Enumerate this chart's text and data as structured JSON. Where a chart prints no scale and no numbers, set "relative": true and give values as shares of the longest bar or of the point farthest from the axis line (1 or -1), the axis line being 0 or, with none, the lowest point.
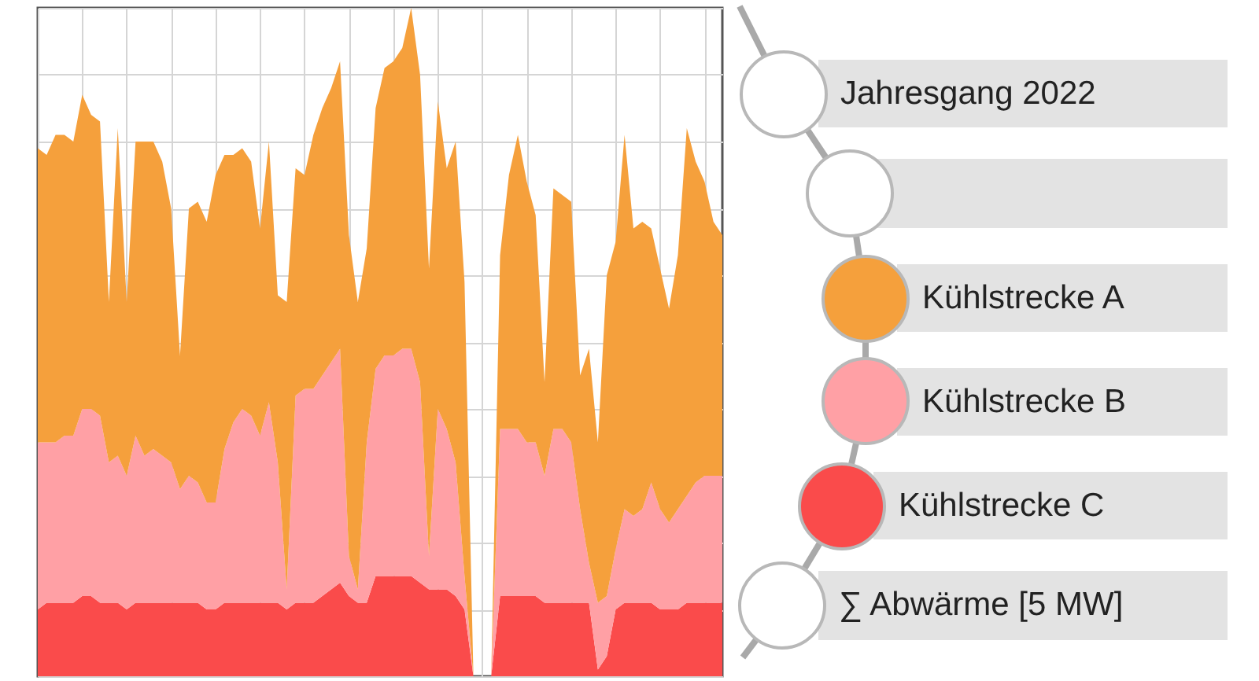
{
  "chart_data": {
    "type": "area",
    "title": "Jahresgang 2022",
    "annotations": [
      "∑ Abwärme [5 MW]"
    ],
    "relative": true,
    "stacked": true,
    "grid": true,
    "legend": "right",
    "categories": [
      null,
      null,
      null,
      null,
      null,
      null,
      null,
      null,
      null,
      null,
      null,
      null,
      null,
      null,
      null,
      null,
      null,
      null,
      null,
      null,
      null,
      null,
      null,
      null,
      null,
      null,
      null,
      null,
      null,
      null,
      null,
      null,
      null,
      null,
      null,
      null,
      null,
      null,
      null,
      null,
      null,
      null,
      null,
      null,
      null,
      null,
      null,
      null,
      null,
      null,
      null,
      null,
      null,
      null,
      null,
      null,
      null,
      null,
      null,
      null,
      null,
      null,
      null,
      null,
      null,
      null,
      null,
      null,
      null,
      null,
      null,
      null,
      null,
      null,
      null,
      null,
      null,
      null
    ],
    "series": [
      {
        "name": "Kühlstrecke C",
        "color": "#fa4b4b",
        "values": [
          0.1,
          0.11,
          0.11,
          0.11,
          0.11,
          0.12,
          0.12,
          0.11,
          0.11,
          0.11,
          0.1,
          0.11,
          0.11,
          0.11,
          0.11,
          0.11,
          0.11,
          0.11,
          0.11,
          0.1,
          0.1,
          0.11,
          0.11,
          0.11,
          0.11,
          0.11,
          0.11,
          0.11,
          0.1,
          0.11,
          0.11,
          0.11,
          0.12,
          0.13,
          0.14,
          0.12,
          0.11,
          0.11,
          0.15,
          0.15,
          0.15,
          0.15,
          0.15,
          0.14,
          0.13,
          0.13,
          0.13,
          0.12,
          0.1,
          0,
          0,
          0,
          0.12,
          0.12,
          0.12,
          0.12,
          0.12,
          0.11,
          0.11,
          0.11,
          0.11,
          0.11,
          0.11,
          0.01,
          0.03,
          0.1,
          0.11,
          0.11,
          0.11,
          0.11,
          0.1,
          0.1,
          0.1,
          0.11,
          0.11,
          0.11,
          0.11,
          0.11
        ]
      },
      {
        "name": "Kühlstrecke B",
        "color": "#ffa0a5",
        "values": [
          0.25,
          0.24,
          0.24,
          0.25,
          0.25,
          0.28,
          0.28,
          0.28,
          0.21,
          0.22,
          0.2,
          0.25,
          0.22,
          0.23,
          0.22,
          0.21,
          0.17,
          0.19,
          0.18,
          0.16,
          0.16,
          0.23,
          0.27,
          0.29,
          0.28,
          0.25,
          0.3,
          0.21,
          0.03,
          0.31,
          0.32,
          0.32,
          0.33,
          0.34,
          0.35,
          0.06,
          0.02,
          0.24,
          0.31,
          0.33,
          0.33,
          0.34,
          0.34,
          0.3,
          0.05,
          0.27,
          0.24,
          0.2,
          0.05,
          0,
          0,
          0,
          0.25,
          0.25,
          0.25,
          0.23,
          0.23,
          0.19,
          0.26,
          0.26,
          0.24,
          0.14,
          0.06,
          0.1,
          0.09,
          0.09,
          0.14,
          0.13,
          0.14,
          0.18,
          0.15,
          0.13,
          0.15,
          0.16,
          0.18,
          0.19,
          0.19,
          0.19
        ]
      },
      {
        "name": "Kühlstrecke A",
        "color": "#f5a03c",
        "values": [
          0.44,
          0.43,
          0.46,
          0.45,
          0.44,
          0.47,
          0.44,
          0.44,
          0.24,
          0.49,
          0.26,
          0.44,
          0.47,
          0.46,
          0.44,
          0.38,
          0.2,
          0.4,
          0.42,
          0.42,
          0.49,
          0.44,
          0.4,
          0.39,
          0.38,
          0.31,
          0.39,
          0.25,
          0.43,
          0.34,
          0.32,
          0.38,
          0.4,
          0.41,
          0.43,
          0.48,
          0.43,
          0.29,
          0.39,
          0.43,
          0.44,
          0.45,
          0.51,
          0.46,
          0.43,
          0.46,
          0.39,
          0.48,
          0.44,
          0,
          0,
          0,
          0.26,
          0.38,
          0.44,
          0.39,
          0.34,
          0.14,
          0.36,
          0.35,
          0.36,
          0.2,
          0.32,
          0.24,
          0.48,
          0.46,
          0.56,
          0.43,
          0.43,
          0.38,
          0.36,
          0.32,
          0.38,
          0.55,
          0.48,
          0.44,
          0.38,
          0.36
        ]
      }
    ]
  }
}
